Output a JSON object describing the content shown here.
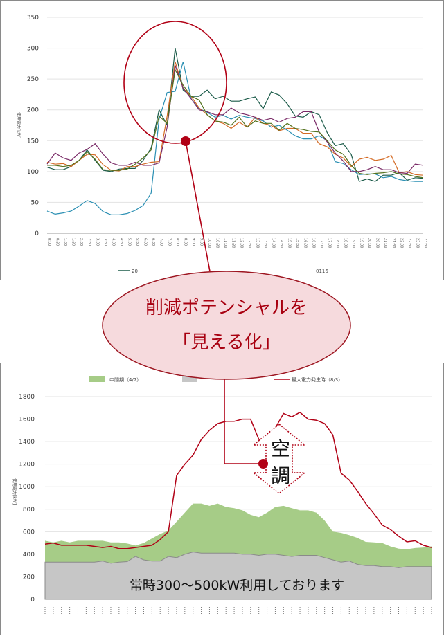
{
  "callout": {
    "line1": "削減ポテンシャルを",
    "line2": "「見える化」"
  },
  "annotations": {
    "aircon_char1": "空",
    "aircon_char2": "調",
    "baseline_note": "常時300〜500kW利用しております"
  },
  "colors": {
    "accent_red": "#b10015",
    "callout_fill": "#f6dadd",
    "green_fill": "#a6cc87",
    "gray_fill": "#c6c6c6"
  },
  "chart_data": [
    {
      "type": "line",
      "ylabel": "使用電力[kW]",
      "ylim": [
        0,
        350
      ],
      "yticks": [
        0,
        50,
        100,
        150,
        200,
        250,
        300,
        350
      ],
      "x": [
        "0:00",
        "0:30",
        "1:00",
        "1:30",
        "2:00",
        "2:30",
        "3:00",
        "3:30",
        "4:00",
        "4:30",
        "5:00",
        "5:30",
        "6:00",
        "6:30",
        "7:00",
        "7:30",
        "8:00",
        "8:30",
        "9:00",
        "9:30",
        "10:00",
        "10:30",
        "11:00",
        "11:30",
        "12:00",
        "12:30",
        "13:00",
        "13:30",
        "14:00",
        "14:30",
        "15:00",
        "15:30",
        "16:00",
        "16:30",
        "17:00",
        "17:30",
        "18:00",
        "18:30",
        "19:00",
        "19:30",
        "20:00",
        "20:30",
        "21:00",
        "21:30",
        "22:00",
        "22:30",
        "23:00",
        "23:30"
      ],
      "legend": [
        "20",
        "0116"
      ],
      "series": [
        {
          "color": "#1a5a48",
          "values": [
            107,
            103,
            103,
            108,
            118,
            135,
            118,
            102,
            100,
            104,
            105,
            105,
            118,
            138,
            200,
            175,
            300,
            232,
            222,
            222,
            232,
            218,
            222,
            214,
            214,
            218,
            221,
            202,
            229,
            224,
            210,
            190,
            188,
            197,
            192,
            163,
            142,
            145,
            128,
            84,
            88,
            84,
            94,
            94,
            98,
            86,
            90,
            89
          ]
        },
        {
          "color": "#2a8fb3",
          "values": [
            36,
            31,
            33,
            36,
            44,
            53,
            48,
            35,
            30,
            30,
            32,
            37,
            45,
            65,
            185,
            228,
            230,
            278,
            218,
            202,
            196,
            188,
            191,
            185,
            191,
            188,
            186,
            182,
            172,
            175,
            167,
            158,
            153,
            153,
            158,
            150,
            116,
            113,
            103,
            95,
            96,
            96,
            90,
            92,
            87,
            85,
            84,
            84
          ]
        },
        {
          "color": "#d46a24",
          "values": [
            115,
            112,
            113,
            108,
            118,
            128,
            127,
            111,
            102,
            101,
            108,
            108,
            112,
            115,
            116,
            190,
            278,
            235,
            222,
            203,
            192,
            182,
            178,
            170,
            180,
            172,
            188,
            178,
            175,
            166,
            170,
            170,
            162,
            162,
            145,
            140,
            128,
            122,
            108,
            120,
            123,
            118,
            120,
            126,
            98,
            100,
            95,
            94
          ]
        },
        {
          "color": "#7a2a67",
          "values": [
            112,
            130,
            122,
            118,
            130,
            136,
            145,
            128,
            114,
            110,
            110,
            115,
            110,
            110,
            114,
            172,
            272,
            235,
            218,
            200,
            197,
            192,
            192,
            203,
            195,
            192,
            188,
            183,
            186,
            180,
            186,
            188,
            197,
            197,
            164,
            148,
            130,
            117,
            100,
            100,
            103,
            108,
            103,
            103,
            98,
            97,
            112,
            110
          ]
        },
        {
          "color": "#54721e",
          "values": [
            110,
            110,
            108,
            110,
            118,
            132,
            120,
            103,
            102,
            102,
            104,
            112,
            122,
            135,
            190,
            178,
            265,
            240,
            222,
            216,
            192,
            182,
            180,
            175,
            188,
            172,
            182,
            178,
            178,
            167,
            178,
            170,
            168,
            165,
            164,
            150,
            135,
            128,
            110,
            97,
            95,
            97,
            98,
            100,
            96,
            95,
            92,
            90
          ]
        }
      ]
    },
    {
      "type": "area",
      "ylabel": "使用電力[kW]",
      "ylim": [
        0,
        1800
      ],
      "yticks": [
        0,
        200,
        400,
        600,
        800,
        1000,
        1200,
        1400,
        1600,
        1800
      ],
      "series": [
        {
          "name": "中間期（4/7）",
          "type": "area",
          "color": "#a6cc87",
          "values": [
            520,
            505,
            520,
            505,
            520,
            520,
            520,
            520,
            505,
            505,
            495,
            478,
            500,
            540,
            580,
            610,
            690,
            770,
            850,
            850,
            830,
            850,
            820,
            810,
            790,
            750,
            730,
            770,
            820,
            830,
            810,
            790,
            790,
            770,
            700,
            600,
            590,
            570,
            545,
            510,
            505,
            500,
            470,
            450,
            445,
            455,
            460,
            470
          ]
        },
        {
          "name": "",
          "type": "area",
          "color": "#c6c6c6",
          "values": [
            330,
            330,
            330,
            330,
            330,
            330,
            330,
            340,
            320,
            330,
            335,
            380,
            350,
            340,
            340,
            380,
            370,
            400,
            420,
            410,
            410,
            410,
            410,
            410,
            400,
            400,
            390,
            400,
            400,
            390,
            380,
            390,
            390,
            390,
            370,
            350,
            330,
            340,
            310,
            300,
            300,
            290,
            290,
            280,
            290,
            290,
            290,
            290
          ]
        },
        {
          "name": "最大電力発生時（8/3）",
          "type": "line",
          "color": "#b10015",
          "values": [
            490,
            500,
            480,
            480,
            480,
            480,
            470,
            460,
            470,
            450,
            450,
            460,
            470,
            480,
            530,
            600,
            1100,
            1200,
            1280,
            1420,
            1500,
            1560,
            1580,
            1580,
            1600,
            1600,
            1420,
            1400,
            1520,
            1650,
            1620,
            1660,
            1600,
            1590,
            1560,
            1460,
            1120,
            1060,
            960,
            850,
            760,
            660,
            620,
            560,
            510,
            520,
            480,
            460
          ]
        }
      ]
    }
  ]
}
